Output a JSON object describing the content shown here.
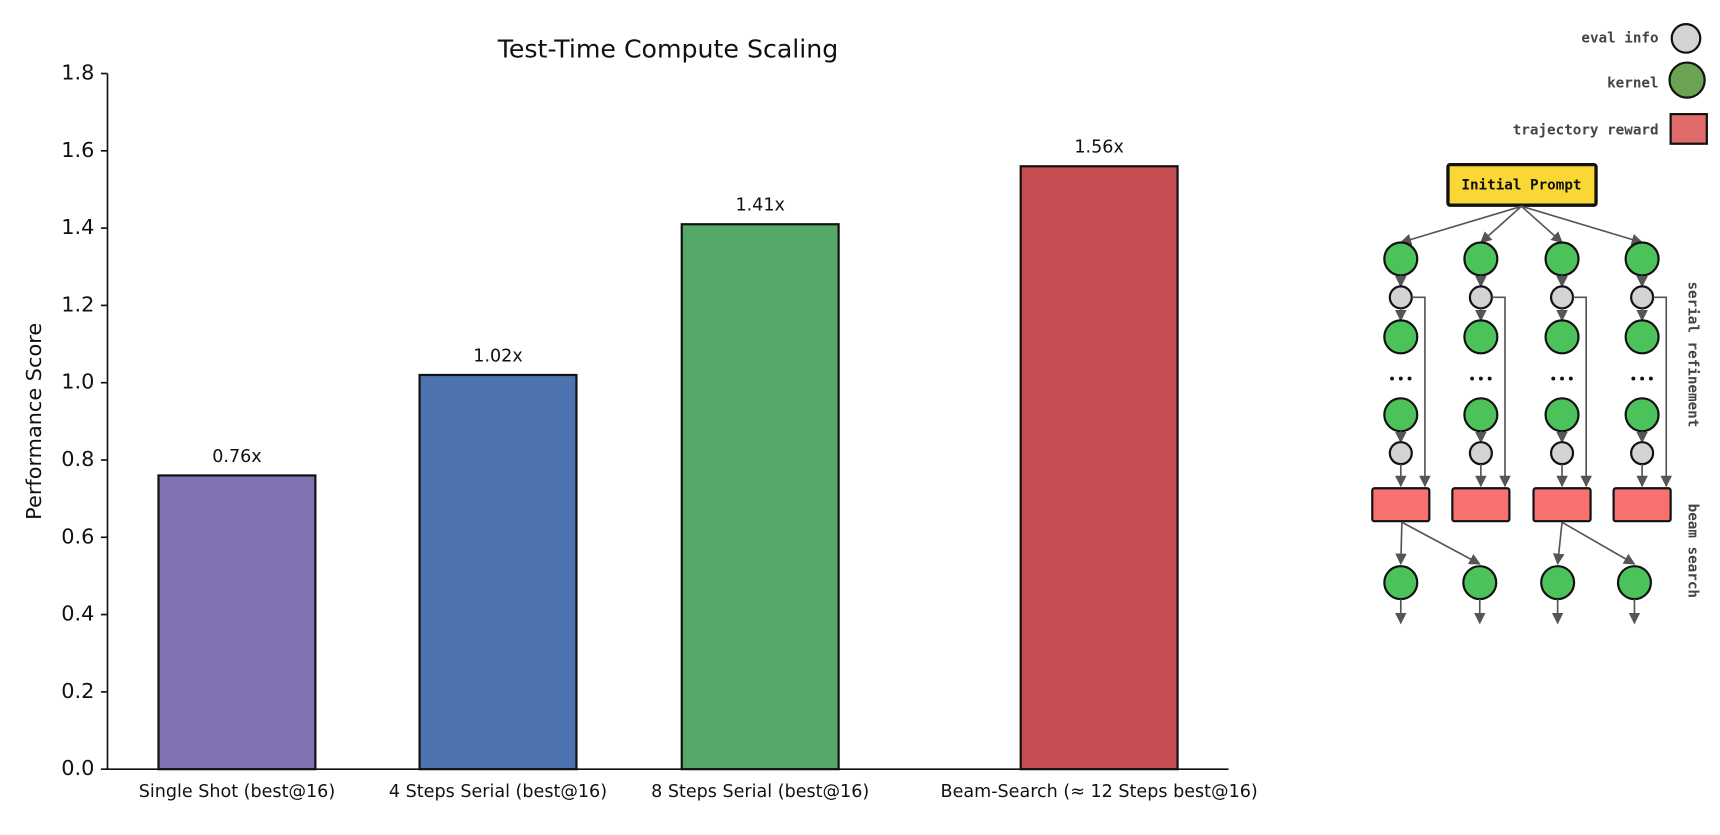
{
  "chart_data": {
    "type": "bar",
    "title": "Test-Time Compute Scaling",
    "ylabel": "Performance Score",
    "categories": [
      "Single Shot (best@16)",
      "4 Steps Serial (best@16)",
      "8 Steps Serial (best@16)",
      "Beam-Search (≈ 12 Steps best@16)"
    ],
    "values": [
      0.76,
      1.02,
      1.41,
      1.56
    ],
    "value_labels": [
      "0.76x",
      "1.02x",
      "1.41x",
      "1.56x"
    ],
    "colors": [
      "#8172b2",
      "#4c72b0",
      "#55a868",
      "#c44e52"
    ],
    "ylim": [
      0,
      1.8
    ],
    "yticks": [
      {
        "value": 0,
        "label": "0.0"
      },
      0.2,
      0.4,
      0.6,
      0.8,
      {
        "value": 1,
        "label": "1.0"
      },
      1.2,
      1.4,
      1.6,
      1.8
    ],
    "grid": false
  },
  "diagram": {
    "legend": [
      "eval info",
      "kernel",
      "trajectory reward"
    ],
    "root": "Initial Prompt",
    "side_labels": [
      "serial refinement",
      "beam search"
    ]
  }
}
